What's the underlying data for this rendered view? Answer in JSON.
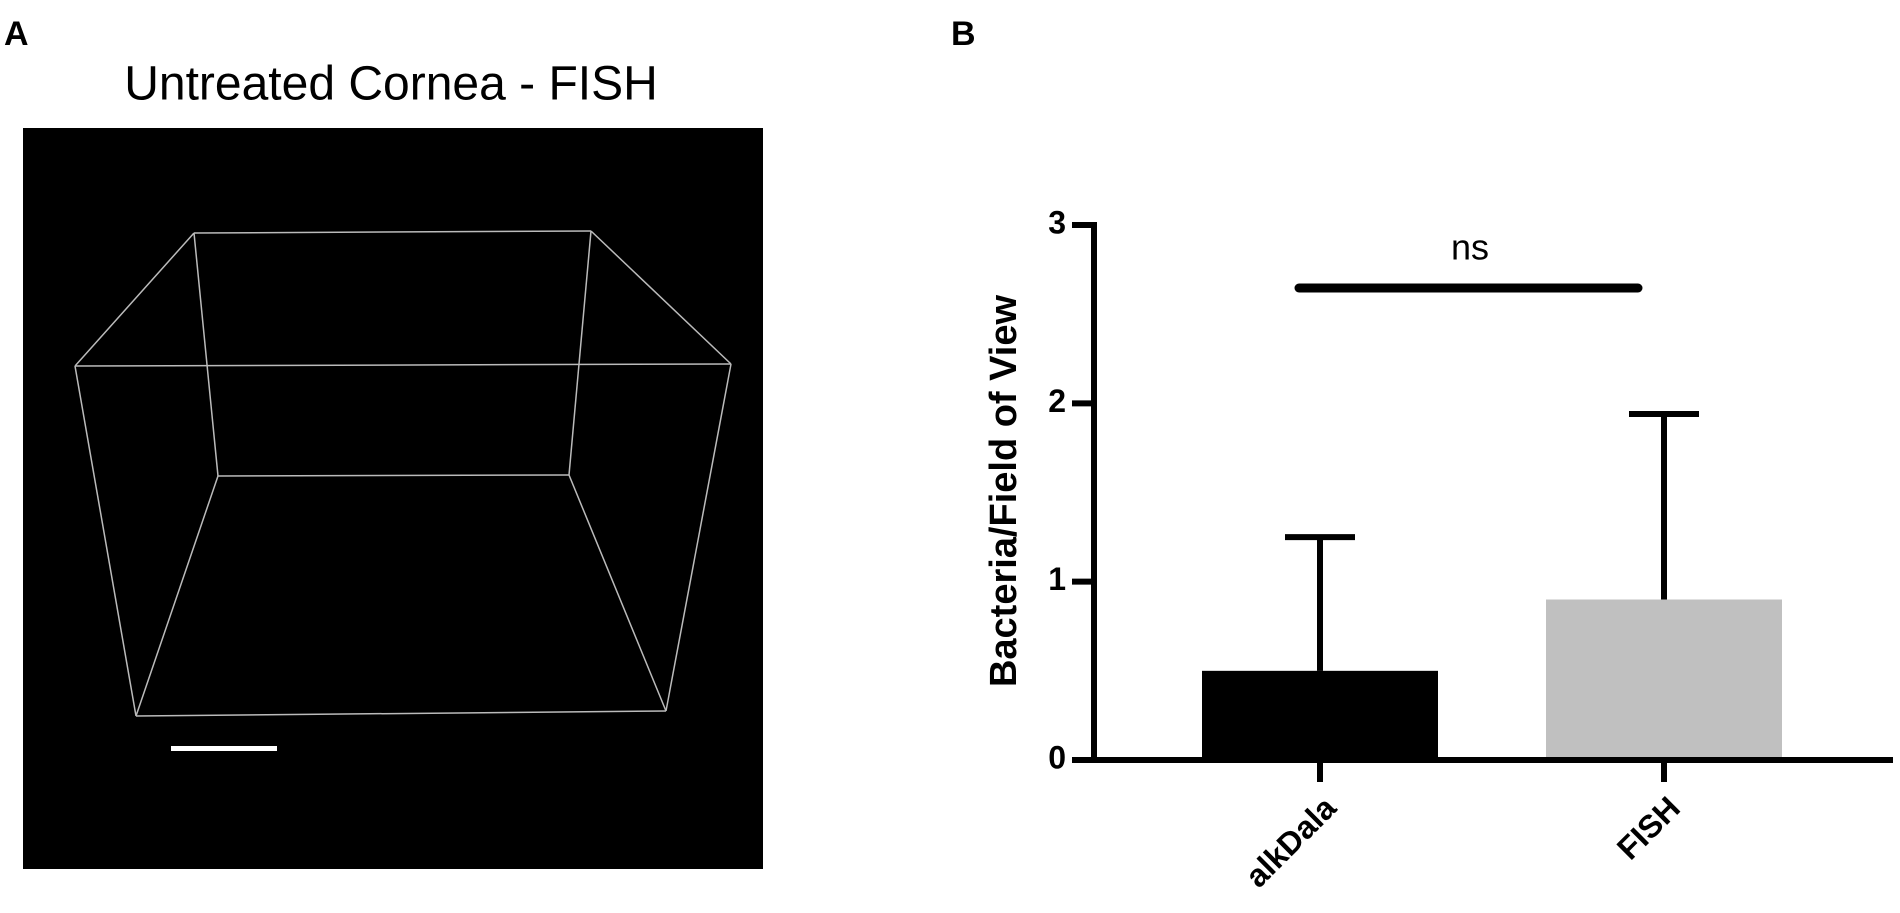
{
  "panels": {
    "a": {
      "label": "A",
      "title": "Untreated Cornea - FISH"
    },
    "b": {
      "label": "B"
    }
  },
  "chart_data": {
    "type": "bar",
    "ylabel": "Bacteria/Field of View",
    "categories": [
      "alkDala",
      "FISH"
    ],
    "values": [
      0.5,
      0.9
    ],
    "errors": [
      0.75,
      1.04
    ],
    "colors": [
      "#000000",
      "#c0c0c0"
    ],
    "ylim": [
      0,
      3
    ],
    "yticks": [
      0,
      1,
      2,
      3
    ],
    "annotation": "ns"
  }
}
